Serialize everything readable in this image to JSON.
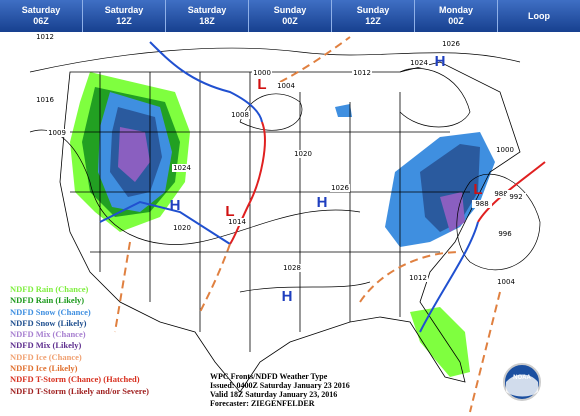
{
  "tabs": [
    {
      "day": "Saturday",
      "time": "06Z"
    },
    {
      "day": "Saturday",
      "time": "12Z"
    },
    {
      "day": "Saturday",
      "time": "18Z"
    },
    {
      "day": "Sunday",
      "time": "00Z"
    },
    {
      "day": "Sunday",
      "time": "12Z"
    },
    {
      "day": "Monday",
      "time": "00Z"
    },
    {
      "day": "Loop"
    }
  ],
  "pressure_labels": [
    "1012",
    "1016",
    "1009",
    "1000",
    "1004",
    "1008",
    "1012",
    "1024",
    "1020",
    "1026",
    "1020",
    "1014",
    "1028",
    "1026",
    "1024",
    "1000",
    "988",
    "992",
    "988",
    "996",
    "1012",
    "1004"
  ],
  "centers": [
    {
      "label": "H",
      "color": "#1f3fbf"
    },
    {
      "label": "H",
      "color": "#1f3fbf"
    },
    {
      "label": "H",
      "color": "#1f3fbf"
    },
    {
      "label": "H",
      "color": "#1f3fbf"
    },
    {
      "label": "L",
      "color": "#d01010"
    },
    {
      "label": "L",
      "color": "#d01010"
    },
    {
      "label": "L",
      "color": "#d01010"
    }
  ],
  "legend": [
    {
      "label": "NDFD Rain (Chance)",
      "color": "#7fef3f"
    },
    {
      "label": "NDFD Rain (Likely)",
      "color": "#1c9a1c"
    },
    {
      "label": "NDFD Snow (Chance)",
      "color": "#3f8fe0"
    },
    {
      "label": "NDFD Snow (Likely)",
      "color": "#1f4f8f"
    },
    {
      "label": "NDFD Mix (Chance)",
      "color": "#a77fd0"
    },
    {
      "label": "NDFD Mix (Likely)",
      "color": "#5f2f8f"
    },
    {
      "label": "NDFD Ice (Chance)",
      "color": "#f0a070"
    },
    {
      "label": "NDFD Ice (Likely)",
      "color": "#e0702f"
    },
    {
      "label": "NDFD T-Storm (Chance) (Hatched)",
      "color": "#d8301f"
    },
    {
      "label": "NDFD T-Storm (Likely and/or Severe)",
      "color": "#9f1f1f"
    }
  ],
  "info": {
    "title": "WPC Fronts/NDFD Weather Type",
    "issued": "Issued: 0400Z Saturday January 23 2016",
    "valid": "Valid 18Z Saturday January 23, 2016",
    "forecaster": "Forecaster: ZIEGENFELDER"
  },
  "logo": "NOAA"
}
